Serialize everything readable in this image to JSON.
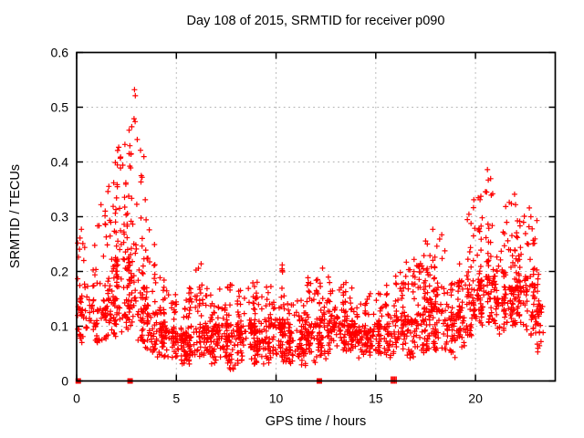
{
  "page": {
    "background_color": "#ffffff",
    "text_color": "#000000"
  },
  "chart_data": {
    "type": "scatter",
    "title": "Day 108 of 2015, SRMTID for receiver p090",
    "xlabel": "GPS time / hours",
    "ylabel": "SRMTID / TECUs",
    "series_name": "SRMTID",
    "xlim": [
      0,
      24
    ],
    "ylim": [
      0,
      0.6
    ],
    "xtick_values": [
      0,
      5,
      10,
      15,
      20
    ],
    "xtick_labels": [
      "0",
      "5",
      "10",
      "15",
      "20"
    ],
    "ytick_values": [
      0,
      0.1,
      0.2,
      0.3,
      0.4,
      0.5,
      0.6
    ],
    "ytick_labels": [
      "0",
      "0.1",
      "0.2",
      "0.3",
      "0.4",
      "0.5",
      "0.6"
    ],
    "grid": {
      "visible": true,
      "style": "dotted",
      "color": "#b3b3b3"
    },
    "border_color": "#000000",
    "marker": {
      "shape": "plus",
      "color": "#ff0000",
      "size": 7
    },
    "seed": 108,
    "density_bins_format": [
      "x_start",
      "x_end",
      "count",
      "y_min",
      "y_mode",
      "y_max"
    ],
    "density_bins": [
      [
        0.0,
        0.5,
        40,
        0.07,
        0.13,
        0.27
      ],
      [
        0.5,
        1.0,
        30,
        0.07,
        0.11,
        0.21
      ],
      [
        1.0,
        1.5,
        45,
        0.07,
        0.13,
        0.32
      ],
      [
        1.5,
        2.0,
        55,
        0.08,
        0.16,
        0.4
      ],
      [
        2.0,
        2.5,
        65,
        0.08,
        0.22,
        0.45
      ],
      [
        2.5,
        3.0,
        70,
        0.09,
        0.24,
        0.5
      ],
      [
        3.0,
        3.5,
        55,
        0.07,
        0.17,
        0.43
      ],
      [
        3.5,
        4.0,
        50,
        0.05,
        0.12,
        0.28
      ],
      [
        4.0,
        4.5,
        50,
        0.04,
        0.1,
        0.19
      ],
      [
        4.5,
        5.0,
        50,
        0.04,
        0.09,
        0.17
      ],
      [
        5.0,
        5.5,
        45,
        0.03,
        0.08,
        0.15
      ],
      [
        5.5,
        6.0,
        50,
        0.03,
        0.08,
        0.17
      ],
      [
        6.0,
        6.5,
        50,
        0.04,
        0.1,
        0.21
      ],
      [
        6.5,
        7.0,
        50,
        0.03,
        0.09,
        0.18
      ],
      [
        7.0,
        7.5,
        50,
        0.03,
        0.09,
        0.17
      ],
      [
        7.5,
        8.0,
        50,
        0.02,
        0.08,
        0.19
      ],
      [
        8.0,
        8.5,
        50,
        0.03,
        0.09,
        0.18
      ],
      [
        8.5,
        9.0,
        50,
        0.04,
        0.1,
        0.2
      ],
      [
        9.0,
        9.5,
        50,
        0.03,
        0.09,
        0.18
      ],
      [
        9.5,
        10.0,
        50,
        0.03,
        0.1,
        0.19
      ],
      [
        10.0,
        10.5,
        55,
        0.03,
        0.1,
        0.21
      ],
      [
        10.5,
        11.0,
        50,
        0.03,
        0.08,
        0.16
      ],
      [
        11.0,
        11.5,
        50,
        0.02,
        0.08,
        0.17
      ],
      [
        11.5,
        12.0,
        50,
        0.03,
        0.09,
        0.19
      ],
      [
        12.0,
        12.5,
        55,
        0.04,
        0.11,
        0.2
      ],
      [
        12.5,
        13.0,
        50,
        0.05,
        0.11,
        0.19
      ],
      [
        13.0,
        13.5,
        50,
        0.05,
        0.11,
        0.19
      ],
      [
        13.5,
        14.0,
        50,
        0.05,
        0.1,
        0.17
      ],
      [
        14.0,
        14.5,
        45,
        0.04,
        0.09,
        0.15
      ],
      [
        14.5,
        15.0,
        45,
        0.04,
        0.09,
        0.16
      ],
      [
        15.0,
        15.5,
        45,
        0.05,
        0.1,
        0.17
      ],
      [
        15.5,
        16.0,
        45,
        0.04,
        0.1,
        0.19
      ],
      [
        16.0,
        16.5,
        45,
        0.05,
        0.11,
        0.2
      ],
      [
        16.5,
        17.0,
        50,
        0.04,
        0.11,
        0.22
      ],
      [
        17.0,
        17.5,
        50,
        0.05,
        0.12,
        0.23
      ],
      [
        17.5,
        18.0,
        55,
        0.05,
        0.13,
        0.27
      ],
      [
        18.0,
        18.5,
        55,
        0.05,
        0.13,
        0.26
      ],
      [
        18.5,
        19.0,
        45,
        0.04,
        0.1,
        0.18
      ],
      [
        19.0,
        19.5,
        50,
        0.06,
        0.13,
        0.25
      ],
      [
        19.5,
        20.0,
        55,
        0.08,
        0.16,
        0.32
      ],
      [
        20.0,
        20.5,
        55,
        0.1,
        0.18,
        0.34
      ],
      [
        20.5,
        21.0,
        55,
        0.1,
        0.19,
        0.38
      ],
      [
        21.0,
        21.5,
        50,
        0.08,
        0.15,
        0.28
      ],
      [
        21.5,
        22.0,
        55,
        0.1,
        0.17,
        0.33
      ],
      [
        22.0,
        22.5,
        55,
        0.1,
        0.17,
        0.31
      ],
      [
        22.5,
        23.0,
        60,
        0.08,
        0.17,
        0.3
      ],
      [
        23.0,
        23.4,
        35,
        0.05,
        0.13,
        0.24
      ]
    ],
    "extreme_points": [
      [
        2.9,
        0.532
      ],
      [
        2.94,
        0.521
      ],
      [
        2.88,
        0.479
      ],
      [
        2.63,
        0.458
      ],
      [
        3.04,
        0.441
      ],
      [
        2.42,
        0.432
      ],
      [
        2.73,
        0.415
      ],
      [
        1.94,
        0.399
      ],
      [
        2.2,
        0.389
      ],
      [
        3.28,
        0.372
      ],
      [
        1.57,
        0.346
      ],
      [
        3.44,
        0.331
      ],
      [
        1.22,
        0.322
      ],
      [
        20.6,
        0.386
      ],
      [
        20.64,
        0.367
      ],
      [
        20.56,
        0.345
      ],
      [
        19.92,
        0.331
      ],
      [
        21.96,
        0.341
      ],
      [
        22.01,
        0.322
      ],
      [
        22.7,
        0.316
      ],
      [
        22.78,
        0.3
      ],
      [
        23.08,
        0.293
      ],
      [
        17.86,
        0.277
      ],
      [
        18.31,
        0.267
      ],
      [
        16.92,
        0.222
      ],
      [
        12.33,
        0.206
      ],
      [
        10.31,
        0.212
      ],
      [
        6.24,
        0.214
      ],
      [
        0.24,
        0.277
      ],
      [
        0.17,
        0.261
      ],
      [
        0.31,
        0.251
      ]
    ],
    "zero_value_squares_x": [
      0.08,
      2.68,
      12.17
    ],
    "zero_value_bars_x": [
      15.78,
      15.86,
      15.94,
      16.02
    ]
  }
}
